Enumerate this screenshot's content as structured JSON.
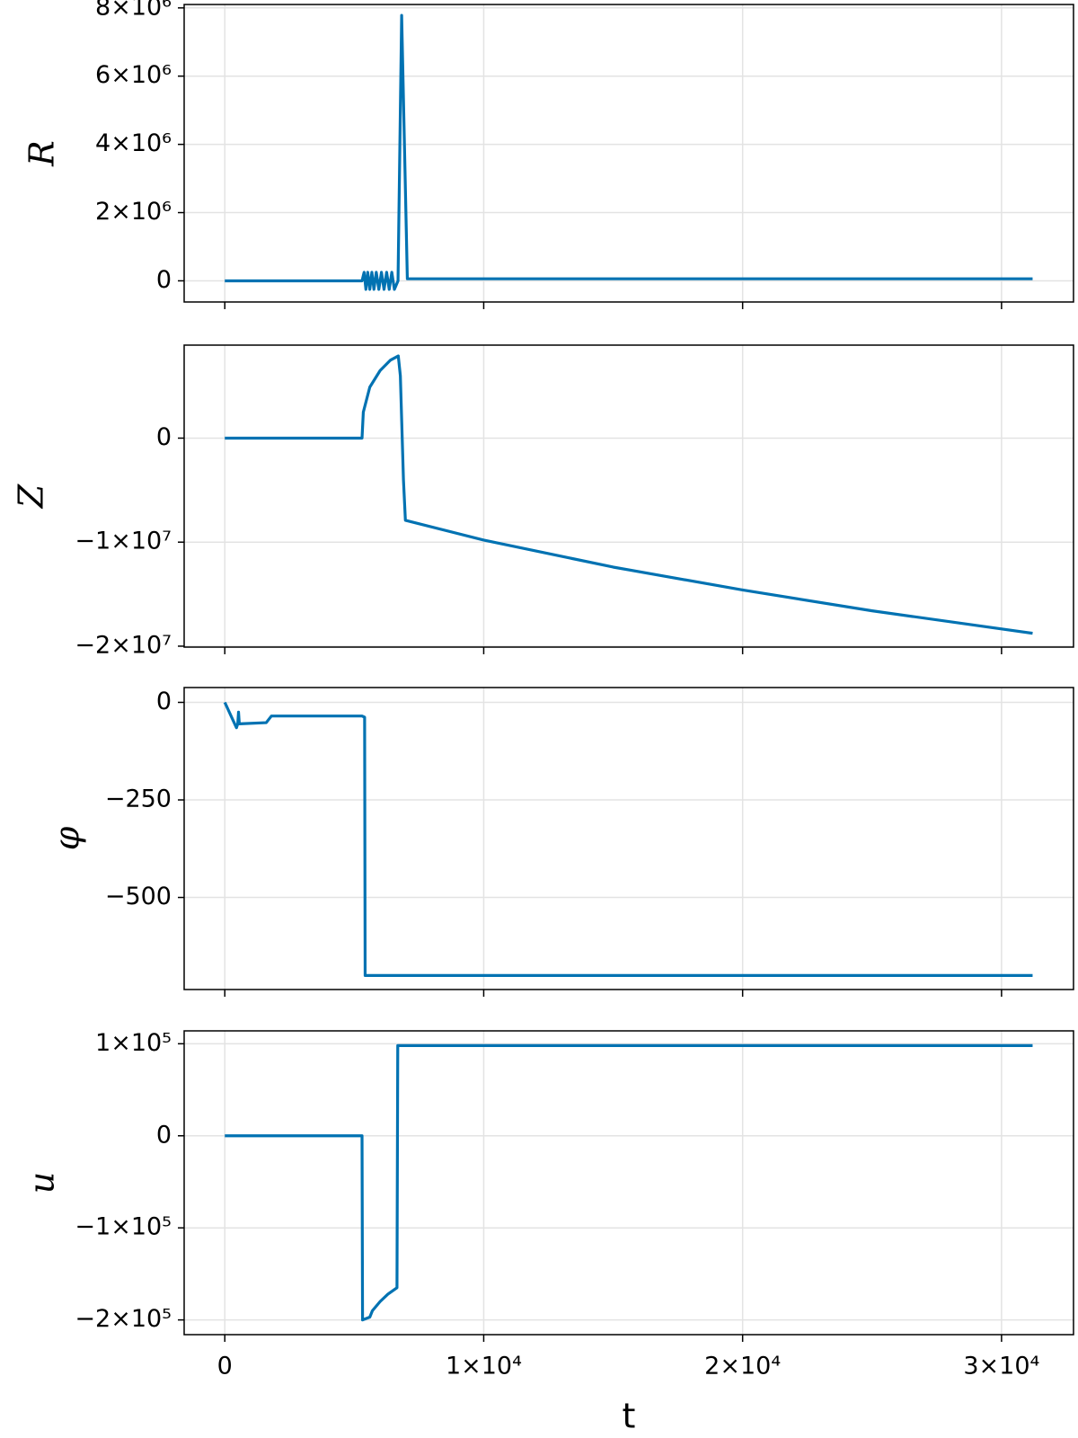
{
  "chart_data": [
    {
      "type": "line",
      "ylabel": "R",
      "x": [
        0,
        2000,
        5300,
        5380,
        5450,
        5520,
        5600,
        5680,
        5760,
        5850,
        5950,
        6050,
        6150,
        6250,
        6350,
        6450,
        6550,
        6690,
        6830,
        7050,
        31200
      ],
      "series": [
        {
          "color": "#0072b2",
          "values": [
            0,
            0,
            0,
            250000,
            -250000,
            250000,
            -250000,
            250000,
            -250000,
            250000,
            -250000,
            250000,
            -250000,
            250000,
            -250000,
            250000,
            -250000,
            0,
            7780000,
            60000,
            60000
          ]
        }
      ],
      "xlim": [
        -1570,
        32780
      ],
      "xticks": [
        0,
        10000,
        20000,
        30000
      ],
      "ylim": [
        -620000,
        8100000
      ],
      "yticks": [
        0,
        {
          "value": 2000000,
          "label": "2×10⁶"
        },
        {
          "value": 4000000,
          "label": "4×10⁶"
        },
        {
          "value": 6000000,
          "label": "6×10⁶"
        },
        {
          "value": 8000000,
          "label": "8×10⁶"
        }
      ],
      "grid": true
    },
    {
      "type": "line",
      "ylabel": "Z",
      "x": [
        0,
        5300,
        5350,
        5600,
        6000,
        6400,
        6700,
        6780,
        6900,
        6975,
        10000,
        15000,
        20000,
        25000,
        31200
      ],
      "series": [
        {
          "color": "#0072b2",
          "values": [
            0,
            0,
            2500000,
            4900000,
            6500000,
            7500000,
            7900000,
            6000000,
            -4000000,
            -7900000,
            -9800000,
            -12400000,
            -14600000,
            -16600000,
            -18760000
          ]
        }
      ],
      "xlim": [
        -1570,
        32780
      ],
      "xticks": [
        0,
        10000,
        20000,
        30000
      ],
      "ylim": [
        -20090000,
        8940000
      ],
      "yticks": [
        0,
        {
          "value": -10000000,
          "label": "−1×10⁷"
        },
        {
          "value": -20000000,
          "label": "−2×10⁷"
        }
      ],
      "grid": true
    },
    {
      "type": "line",
      "ylabel": "φ",
      "x": [
        0,
        450,
        500,
        530,
        560,
        1600,
        1800,
        5300,
        5400,
        5420,
        31200
      ],
      "series": [
        {
          "color": "#0072b2",
          "values": [
            0,
            -65,
            -55,
            -25,
            -55,
            -52,
            -35,
            -35,
            -38,
            -700,
            -700
          ]
        }
      ],
      "xlim": [
        -1570,
        32780
      ],
      "xticks": [
        0,
        10000,
        20000,
        30000
      ],
      "ylim": [
        -736,
        38
      ],
      "yticks": [
        0,
        {
          "value": -250,
          "label": "−250"
        },
        {
          "value": -500,
          "label": "−500"
        }
      ],
      "grid": true
    },
    {
      "type": "line",
      "ylabel": "u",
      "xlabel": "t",
      "x": [
        0,
        5300,
        5320,
        5600,
        5700,
        6000,
        6300,
        6650,
        6680,
        31200
      ],
      "series": [
        {
          "color": "#0072b2",
          "values": [
            0,
            0,
            -200000,
            -197000,
            -190000,
            -180000,
            -172000,
            -165000,
            98000,
            98000
          ]
        }
      ],
      "xlim": [
        -1570,
        32780
      ],
      "xticks": [
        0,
        {
          "value": 10000,
          "label": "1×10⁴"
        },
        {
          "value": 20000,
          "label": "2×10⁴"
        },
        {
          "value": 30000,
          "label": "3×10⁴"
        }
      ],
      "ylim": [
        -216000,
        114000
      ],
      "yticks": [
        {
          "value": 100000,
          "label": "1×10⁵"
        },
        0,
        {
          "value": -100000,
          "label": "−1×10⁵"
        },
        {
          "value": -200000,
          "label": "−2×10⁵"
        }
      ],
      "grid": true
    }
  ]
}
